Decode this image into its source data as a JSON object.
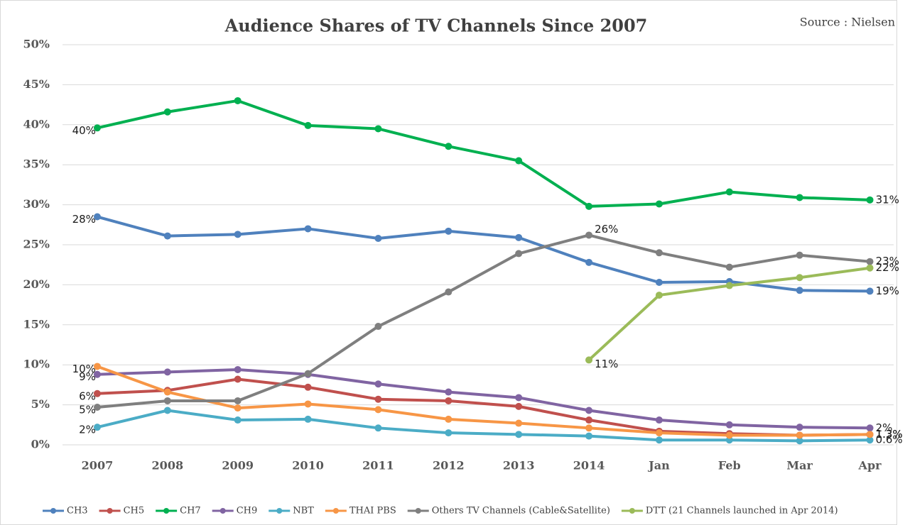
{
  "chart_data": {
    "type": "line",
    "title": "Audience Shares of TV Channels Since 2007",
    "source": "Source : Nielsen",
    "categories": [
      "2007",
      "2008",
      "2009",
      "2010",
      "2011",
      "2012",
      "2013",
      "2014",
      "Jan",
      "Feb",
      "Mar",
      "Apr"
    ],
    "ylim": [
      0,
      50
    ],
    "yticks": [
      {
        "value": 0,
        "label": "0%"
      },
      {
        "value": 5,
        "label": "5%"
      },
      {
        "value": 10,
        "label": "10%"
      },
      {
        "value": 15,
        "label": "15%"
      },
      {
        "value": 20,
        "label": "20%"
      },
      {
        "value": 25,
        "label": "25%"
      },
      {
        "value": 30,
        "label": "30%"
      },
      {
        "value": 35,
        "label": "35%"
      },
      {
        "value": 40,
        "label": "40%"
      },
      {
        "value": 45,
        "label": "45%"
      },
      {
        "value": 50,
        "label": "50%"
      }
    ],
    "grid": true,
    "legend": "bottom",
    "series": [
      {
        "name": "CH3",
        "color": "#4f81bd",
        "values": [
          28.5,
          26.1,
          26.3,
          27.0,
          25.8,
          26.7,
          25.9,
          22.8,
          20.3,
          20.4,
          19.3,
          19.2
        ],
        "value_labels": [
          "28%",
          null,
          null,
          null,
          null,
          null,
          null,
          null,
          null,
          null,
          null,
          "19%"
        ]
      },
      {
        "name": "CH5",
        "color": "#c0504d",
        "values": [
          6.4,
          6.8,
          8.2,
          7.2,
          5.7,
          5.5,
          4.8,
          3.1,
          1.7,
          1.4,
          1.2,
          1.3
        ],
        "value_labels": [
          "6%",
          null,
          null,
          null,
          null,
          null,
          null,
          null,
          null,
          null,
          null,
          "1.3%"
        ]
      },
      {
        "name": "CH7",
        "color": "#00b050",
        "values": [
          39.6,
          41.6,
          43.0,
          39.9,
          39.5,
          37.3,
          35.5,
          29.8,
          30.1,
          31.6,
          30.9,
          30.6
        ],
        "value_labels": [
          "40%",
          null,
          null,
          null,
          null,
          null,
          null,
          null,
          null,
          null,
          null,
          "31%"
        ]
      },
      {
        "name": "CH9",
        "color": "#8064a2",
        "values": [
          8.8,
          9.1,
          9.4,
          8.8,
          7.6,
          6.6,
          5.9,
          4.3,
          3.1,
          2.5,
          2.2,
          2.1
        ],
        "value_labels": [
          "9%",
          null,
          null,
          null,
          null,
          null,
          null,
          null,
          null,
          null,
          null,
          "2%"
        ]
      },
      {
        "name": "NBT",
        "color": "#4bacc6",
        "values": [
          2.2,
          4.3,
          3.1,
          3.2,
          2.1,
          1.5,
          1.3,
          1.1,
          0.6,
          0.6,
          0.5,
          0.6
        ],
        "value_labels": [
          "2%",
          null,
          null,
          null,
          null,
          null,
          null,
          null,
          null,
          null,
          null,
          "0.6%"
        ]
      },
      {
        "name": "THAI PBS",
        "color": "#f79646",
        "values": [
          9.8,
          6.6,
          4.6,
          5.1,
          4.4,
          3.2,
          2.7,
          2.1,
          1.5,
          1.2,
          1.2,
          1.3
        ],
        "value_labels": [
          "10%",
          null,
          null,
          null,
          null,
          null,
          null,
          null,
          null,
          null,
          null,
          "1.3%"
        ]
      },
      {
        "name": "Others TV Channels (Cable&Satellite)",
        "color": "#7f7f7f",
        "values": [
          4.7,
          5.5,
          5.5,
          8.9,
          14.8,
          19.1,
          23.9,
          26.2,
          24.0,
          22.2,
          23.7,
          22.9
        ],
        "value_labels": [
          "5%",
          null,
          null,
          null,
          null,
          null,
          null,
          "26%",
          null,
          null,
          null,
          "23%"
        ]
      },
      {
        "name": "DTT (21 Channels launched in Apr 2014)",
        "color": "#9bbb59",
        "values": [
          null,
          null,
          null,
          null,
          null,
          null,
          null,
          10.6,
          18.7,
          19.9,
          20.9,
          22.1
        ],
        "value_labels": [
          null,
          null,
          null,
          null,
          null,
          null,
          null,
          "11%",
          null,
          null,
          null,
          "22%"
        ]
      }
    ]
  }
}
